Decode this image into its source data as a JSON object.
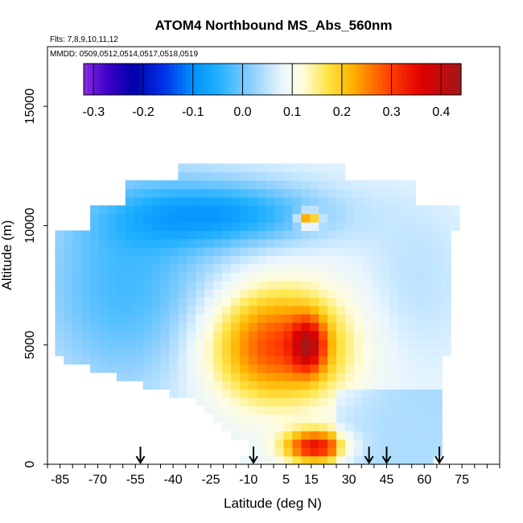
{
  "chart_data": {
    "type": "heatmap",
    "title": "ATOM4 Northbound MS_Abs_560nm",
    "subtitle_flights": "Flts: 7,8,9,10,11,12",
    "subtitle_dates": "MMDD: 0509,0512,0514,0517,0518,0519",
    "xlabel": "Latitude (deg N)",
    "ylabel": "Altitude (m)",
    "xlim": [
      -90,
      90
    ],
    "ylim": [
      0,
      17500
    ],
    "x_ticks": [
      -85,
      -70,
      -55,
      -40,
      -25,
      -10,
      5,
      15,
      30,
      45,
      60,
      75
    ],
    "y_ticks": [
      0,
      5000,
      10000,
      15000
    ],
    "colorbar": {
      "range": [
        -0.32,
        0.44
      ],
      "ticks": [
        -0.3,
        -0.2,
        -0.1,
        0.0,
        0.1,
        0.2,
        0.3,
        0.4
      ],
      "tick_labels": [
        "-0.3",
        "-0.2",
        "-0.1",
        "0.0",
        "0.1",
        "0.2",
        "0.3",
        "0.4"
      ],
      "stops": [
        {
          "v": -0.32,
          "c": "#8a2be2"
        },
        {
          "v": -0.27,
          "c": "#3a00c8"
        },
        {
          "v": -0.22,
          "c": "#0000a8"
        },
        {
          "v": -0.16,
          "c": "#0030e8"
        },
        {
          "v": -0.1,
          "c": "#0090ff"
        },
        {
          "v": -0.05,
          "c": "#1fb0ff"
        },
        {
          "v": 0.02,
          "c": "#8fd0ff"
        },
        {
          "v": 0.08,
          "c": "#eaf6ff"
        },
        {
          "v": 0.12,
          "c": "#fffde0"
        },
        {
          "v": 0.17,
          "c": "#ffe64a"
        },
        {
          "v": 0.22,
          "c": "#ffb400"
        },
        {
          "v": 0.3,
          "c": "#ff3a00"
        },
        {
          "v": 0.36,
          "c": "#e00000"
        },
        {
          "v": 0.44,
          "c": "#a01818"
        }
      ]
    },
    "data_extent": {
      "lat_min": -87,
      "lat_max": 75,
      "alt_max_contiguous": 12500
    },
    "features": [
      {
        "name": "free-troposphere",
        "lat": [
          -50,
          10
        ],
        "alt": [
          9500,
          11500
        ],
        "value": -0.06
      },
      {
        "name": "southern-high",
        "lat": [
          -87,
          -30
        ],
        "alt": [
          4000,
          11000
        ],
        "value": -0.04
      },
      {
        "name": "african-plume-core",
        "lat": [
          8,
          20
        ],
        "alt": [
          4000,
          6000
        ],
        "value": 0.42
      },
      {
        "name": "african-plume",
        "lat": [
          -28,
          30
        ],
        "alt": [
          2500,
          7500
        ],
        "value": 0.28
      },
      {
        "name": "boundary-layer-plume",
        "lat": [
          3,
          30
        ],
        "alt": [
          0,
          1500
        ],
        "value": 0.32
      },
      {
        "name": "upper-red-patch",
        "lat": [
          10,
          18
        ],
        "alt": [
          10000,
          10600
        ],
        "value": 0.31
      },
      {
        "name": "northern-mid-altitude",
        "lat": [
          40,
          75
        ],
        "alt": [
          5000,
          10500
        ],
        "value": 0.05
      }
    ],
    "arrows_lat": [
      -53,
      -8,
      38,
      45,
      66
    ]
  }
}
